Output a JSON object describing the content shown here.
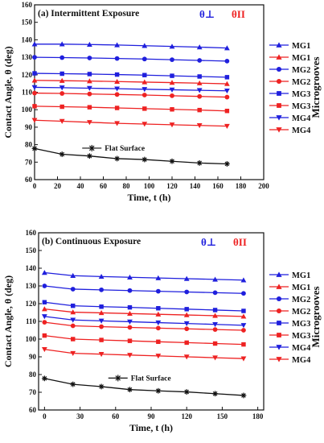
{
  "chart_data": [
    {
      "type": "line",
      "title": "(a) Intermittent Exposure",
      "xlabel": "Time, t (h)",
      "ylabel": "Contact Angle, θ (deg)",
      "xlim": [
        0,
        200
      ],
      "ylim": [
        60,
        160
      ],
      "xticks": [
        0,
        20,
        40,
        60,
        80,
        100,
        120,
        140,
        160,
        180,
        200
      ],
      "yticks": [
        60,
        70,
        80,
        90,
        100,
        110,
        120,
        130,
        140,
        150,
        160
      ],
      "theta_perp": "θ⊥",
      "theta_par": "θII",
      "group_label": "Microgrooves",
      "flat_label": "Flat Surface",
      "x": [
        0,
        24,
        48,
        72,
        96,
        120,
        144,
        168
      ],
      "series": [
        {
          "name": "MG1",
          "marker": "triangle-up",
          "color": "#1f1fdd",
          "values": [
            137.5,
            137.5,
            137.3,
            137.0,
            136.6,
            136.2,
            135.8,
            135.3
          ]
        },
        {
          "name": "MG1",
          "marker": "triangle-up",
          "color": "#ee2222",
          "values": [
            116.8,
            116.6,
            116.4,
            116.1,
            115.8,
            115.5,
            115.2,
            114.8
          ]
        },
        {
          "name": "MG2",
          "marker": "circle",
          "color": "#1f1fdd",
          "values": [
            130.0,
            129.8,
            129.6,
            129.3,
            129.0,
            128.6,
            128.2,
            127.8
          ]
        },
        {
          "name": "MG2",
          "marker": "circle",
          "color": "#ee2222",
          "values": [
            109.5,
            109.3,
            109.0,
            108.7,
            108.4,
            108.0,
            107.6,
            107.2
          ]
        },
        {
          "name": "MG3",
          "marker": "square",
          "color": "#1f1fdd",
          "values": [
            120.8,
            120.6,
            120.4,
            120.1,
            119.8,
            119.4,
            119.0,
            118.6
          ]
        },
        {
          "name": "MG3",
          "marker": "square",
          "color": "#ee2222",
          "values": [
            102.0,
            101.7,
            101.4,
            101.0,
            100.6,
            100.2,
            99.8,
            99.3
          ]
        },
        {
          "name": "MG4",
          "marker": "triangle-down",
          "color": "#1f1fdd",
          "values": [
            112.8,
            112.6,
            112.3,
            112.0,
            111.7,
            111.4,
            111.1,
            110.8
          ]
        },
        {
          "name": "MG4",
          "marker": "triangle-down",
          "color": "#ee2222",
          "values": [
            94.0,
            93.4,
            92.8,
            92.2,
            91.8,
            91.4,
            91.0,
            90.6
          ]
        },
        {
          "name": "Flat Surface",
          "marker": "asterisk",
          "color": "#111111",
          "values": [
            77.8,
            74.5,
            73.5,
            72.0,
            71.5,
            70.5,
            69.5,
            69.0
          ]
        }
      ]
    },
    {
      "type": "line",
      "title": "(b) Continuous Exposure",
      "xlabel": "Time, t (h)",
      "ylabel": "Contact Angle, θ (deg)",
      "xlim": [
        -5,
        185
      ],
      "ylim": [
        60,
        160
      ],
      "xticks": [
        0,
        30,
        60,
        90,
        120,
        150,
        180
      ],
      "yticks": [
        60,
        70,
        80,
        90,
        100,
        110,
        120,
        130,
        140,
        150,
        160
      ],
      "theta_perp": "θ⊥",
      "theta_par": "θII",
      "group_label": "Microgrooves",
      "flat_label": "Flat Surface",
      "x": [
        0,
        24,
        48,
        72,
        96,
        120,
        144,
        168
      ],
      "series": [
        {
          "name": "MG1",
          "marker": "triangle-up",
          "color": "#1f1fdd",
          "values": [
            137.5,
            135.8,
            135.3,
            134.9,
            134.5,
            134.1,
            133.7,
            133.3
          ]
        },
        {
          "name": "MG1",
          "marker": "triangle-up",
          "color": "#ee2222",
          "values": [
            117.0,
            115.2,
            114.8,
            114.4,
            114.0,
            113.6,
            113.2,
            112.8
          ]
        },
        {
          "name": "MG2",
          "marker": "circle",
          "color": "#1f1fdd",
          "values": [
            130.0,
            128.2,
            127.8,
            127.4,
            127.0,
            126.6,
            126.2,
            125.8
          ]
        },
        {
          "name": "MG2",
          "marker": "circle",
          "color": "#ee2222",
          "values": [
            109.5,
            107.5,
            107.0,
            106.6,
            106.2,
            105.8,
            105.4,
            105.0
          ]
        },
        {
          "name": "MG3",
          "marker": "square",
          "color": "#1f1fdd",
          "values": [
            120.8,
            118.8,
            118.3,
            117.9,
            117.4,
            116.9,
            116.4,
            115.9
          ]
        },
        {
          "name": "MG3",
          "marker": "square",
          "color": "#ee2222",
          "values": [
            102.0,
            100.0,
            99.5,
            99.0,
            98.5,
            98.0,
            97.5,
            97.0
          ]
        },
        {
          "name": "MG4",
          "marker": "triangle-down",
          "color": "#1f1fdd",
          "values": [
            112.8,
            110.8,
            110.3,
            109.8,
            109.3,
            108.8,
            108.3,
            107.8
          ]
        },
        {
          "name": "MG4",
          "marker": "triangle-down",
          "color": "#ee2222",
          "values": [
            94.2,
            92.0,
            91.5,
            91.0,
            90.5,
            90.0,
            89.5,
            89.0
          ]
        },
        {
          "name": "Flat Surface",
          "marker": "asterisk",
          "color": "#111111",
          "values": [
            77.8,
            74.5,
            73.2,
            71.5,
            70.8,
            70.2,
            69.2,
            68.2
          ]
        }
      ]
    }
  ]
}
